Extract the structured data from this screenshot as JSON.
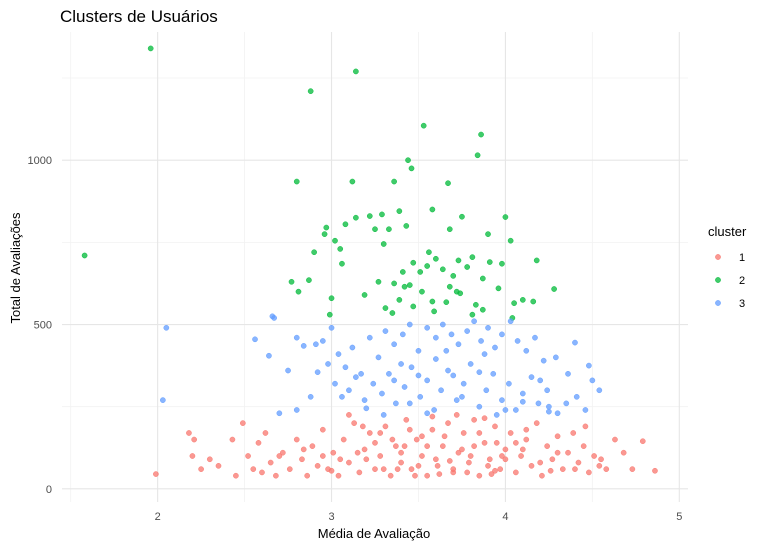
{
  "chart_data": {
    "type": "scatter",
    "title": "Clusters de Usuários",
    "xlabel": "Média de Avaliação",
    "ylabel": "Total de Avaliações",
    "xlim": [
      1.45,
      5.05
    ],
    "ylim": [
      -40,
      1390
    ],
    "x_ticks": [
      2,
      3,
      4,
      5
    ],
    "y_ticks": [
      0,
      500,
      1000
    ],
    "grid": true,
    "legend": {
      "title": "cluster",
      "placement": "right",
      "entries": [
        {
          "label": "1",
          "color": "#F8766D"
        },
        {
          "label": "2",
          "color": "#00BA38"
        },
        {
          "label": "3",
          "color": "#619CFF"
        }
      ]
    },
    "series": [
      {
        "name": "2",
        "color": "#00BA38",
        "points": [
          [
            1.96,
            1340
          ],
          [
            3.14,
            1270
          ],
          [
            2.88,
            1210
          ],
          [
            3.53,
            1105
          ],
          [
            3.86,
            1078
          ],
          [
            3.84,
            1015
          ],
          [
            3.44,
            1000
          ],
          [
            2.8,
            935
          ],
          [
            3.12,
            935
          ],
          [
            3.36,
            935
          ],
          [
            3.67,
            930
          ],
          [
            3.46,
            975
          ],
          [
            3.58,
            850
          ],
          [
            3.39,
            845
          ],
          [
            3.22,
            830
          ],
          [
            3.29,
            835
          ],
          [
            3.14,
            825
          ],
          [
            3.08,
            805
          ],
          [
            2.97,
            795
          ],
          [
            3.75,
            828
          ],
          [
            4.0,
            827
          ],
          [
            3.43,
            800
          ],
          [
            3.25,
            790
          ],
          [
            2.96,
            775
          ],
          [
            3.33,
            790
          ],
          [
            3.68,
            790
          ],
          [
            3.9,
            775
          ],
          [
            4.03,
            755
          ],
          [
            3.02,
            755
          ],
          [
            3.05,
            730
          ],
          [
            3.3,
            745
          ],
          [
            2.9,
            720
          ],
          [
            3.81,
            705
          ],
          [
            3.56,
            720
          ],
          [
            3.6,
            700
          ],
          [
            3.73,
            695
          ],
          [
            3.91,
            690
          ],
          [
            3.06,
            685
          ],
          [
            3.47,
            688
          ],
          [
            3.55,
            678
          ],
          [
            3.64,
            668
          ],
          [
            3.78,
            675
          ],
          [
            3.98,
            685
          ],
          [
            4.18,
            695
          ],
          [
            3.51,
            660
          ],
          [
            3.41,
            660
          ],
          [
            3.7,
            648
          ],
          [
            3.87,
            640
          ],
          [
            2.87,
            635
          ],
          [
            2.77,
            630
          ],
          [
            3.36,
            625
          ],
          [
            3.27,
            630
          ],
          [
            3.42,
            615
          ],
          [
            3.68,
            615
          ],
          [
            3.52,
            600
          ],
          [
            3.74,
            595
          ],
          [
            3.96,
            610
          ],
          [
            4.28,
            608
          ],
          [
            3.19,
            590
          ],
          [
            3.0,
            580
          ],
          [
            3.39,
            575
          ],
          [
            3.58,
            570
          ],
          [
            3.66,
            568
          ],
          [
            3.83,
            560
          ],
          [
            4.1,
            575
          ],
          [
            4.16,
            570
          ],
          [
            4.05,
            565
          ],
          [
            3.47,
            555
          ],
          [
            3.87,
            545
          ],
          [
            3.59,
            540
          ],
          [
            3.35,
            535
          ],
          [
            2.99,
            530
          ],
          [
            3.81,
            530
          ],
          [
            4.04,
            520
          ],
          [
            2.81,
            600
          ],
          [
            1.58,
            710
          ],
          [
            3.72,
            600
          ],
          [
            3.45,
            620
          ],
          [
            3.31,
            550
          ]
        ]
      },
      {
        "name": "3",
        "color": "#619CFF",
        "points": [
          [
            2.05,
            490
          ],
          [
            2.66,
            525
          ],
          [
            2.67,
            520
          ],
          [
            2.56,
            455
          ],
          [
            2.64,
            405
          ],
          [
            2.75,
            360
          ],
          [
            2.8,
            460
          ],
          [
            2.84,
            435
          ],
          [
            2.91,
            440
          ],
          [
            2.92,
            355
          ],
          [
            2.95,
            450
          ],
          [
            2.98,
            380
          ],
          [
            3.0,
            490
          ],
          [
            3.04,
            410
          ],
          [
            3.08,
            370
          ],
          [
            3.12,
            430
          ],
          [
            3.17,
            350
          ],
          [
            3.22,
            460
          ],
          [
            3.27,
            400
          ],
          [
            3.31,
            480
          ],
          [
            3.36,
            440
          ],
          [
            3.41,
            470
          ],
          [
            3.45,
            500
          ],
          [
            3.5,
            420
          ],
          [
            3.55,
            490
          ],
          [
            3.6,
            460
          ],
          [
            3.64,
            500
          ],
          [
            3.69,
            470
          ],
          [
            3.73,
            440
          ],
          [
            3.78,
            480
          ],
          [
            3.82,
            510
          ],
          [
            3.86,
            450
          ],
          [
            3.9,
            490
          ],
          [
            3.94,
            430
          ],
          [
            3.98,
            470
          ],
          [
            4.03,
            510
          ],
          [
            4.07,
            450
          ],
          [
            4.12,
            420
          ],
          [
            4.17,
            460
          ],
          [
            4.22,
            390
          ],
          [
            4.29,
            400
          ],
          [
            4.36,
            350
          ],
          [
            4.4,
            445
          ],
          [
            4.5,
            330
          ],
          [
            3.02,
            320
          ],
          [
            3.06,
            280
          ],
          [
            3.1,
            300
          ],
          [
            3.14,
            340
          ],
          [
            3.19,
            270
          ],
          [
            3.24,
            320
          ],
          [
            3.29,
            290
          ],
          [
            3.33,
            350
          ],
          [
            3.37,
            260
          ],
          [
            3.42,
            310
          ],
          [
            3.46,
            370
          ],
          [
            3.51,
            280
          ],
          [
            3.55,
            330
          ],
          [
            3.59,
            240
          ],
          [
            3.63,
            300
          ],
          [
            3.67,
            360
          ],
          [
            3.72,
            270
          ],
          [
            3.76,
            320
          ],
          [
            3.8,
            380
          ],
          [
            3.85,
            250
          ],
          [
            3.89,
            300
          ],
          [
            3.93,
            350
          ],
          [
            3.98,
            270
          ],
          [
            4.02,
            320
          ],
          [
            4.06,
            240
          ],
          [
            4.1,
            290
          ],
          [
            4.15,
            340
          ],
          [
            4.19,
            260
          ],
          [
            4.24,
            300
          ],
          [
            4.3,
            230
          ],
          [
            4.35,
            260
          ],
          [
            4.41,
            280
          ],
          [
            4.46,
            240
          ],
          [
            4.54,
            300
          ],
          [
            2.03,
            270
          ],
          [
            2.7,
            230
          ],
          [
            2.8,
            240
          ],
          [
            2.88,
            280
          ],
          [
            3.4,
            380
          ],
          [
            3.5,
            345
          ],
          [
            3.7,
            345
          ],
          [
            3.85,
            355
          ],
          [
            3.6,
            395
          ],
          [
            3.45,
            260
          ],
          [
            3.75,
            280
          ],
          [
            4.0,
            240
          ],
          [
            3.3,
            225
          ],
          [
            3.2,
            245
          ],
          [
            3.55,
            230
          ],
          [
            3.95,
            225
          ],
          [
            4.25,
            235
          ],
          [
            4.1,
            265
          ],
          [
            3.88,
            410
          ],
          [
            4.2,
            330
          ],
          [
            3.66,
            420
          ],
          [
            3.36,
            330
          ],
          [
            4.48,
            375
          ],
          [
            4.25,
            250
          ]
        ]
      },
      {
        "name": "1",
        "color": "#F8766D",
        "points": [
          [
            1.99,
            45
          ],
          [
            2.18,
            170
          ],
          [
            2.21,
            150
          ],
          [
            2.25,
            60
          ],
          [
            2.3,
            90
          ],
          [
            2.35,
            70
          ],
          [
            2.43,
            150
          ],
          [
            2.49,
            200
          ],
          [
            2.52,
            100
          ],
          [
            2.55,
            60
          ],
          [
            2.58,
            140
          ],
          [
            2.62,
            170
          ],
          [
            2.65,
            80
          ],
          [
            2.68,
            40
          ],
          [
            2.72,
            110
          ],
          [
            2.76,
            60
          ],
          [
            2.8,
            150
          ],
          [
            2.83,
            90
          ],
          [
            2.86,
            40
          ],
          [
            2.89,
            130
          ],
          [
            2.92,
            70
          ],
          [
            2.95,
            180
          ],
          [
            2.98,
            60
          ],
          [
            3.01,
            110
          ],
          [
            3.04,
            40
          ],
          [
            3.07,
            150
          ],
          [
            3.1,
            80
          ],
          [
            3.13,
            200
          ],
          [
            3.16,
            50
          ],
          [
            3.19,
            120
          ],
          [
            3.22,
            170
          ],
          [
            3.25,
            60
          ],
          [
            3.28,
            100
          ],
          [
            3.31,
            190
          ],
          [
            3.34,
            40
          ],
          [
            3.37,
            130
          ],
          [
            3.4,
            80
          ],
          [
            3.43,
            210
          ],
          [
            3.46,
            60
          ],
          [
            3.49,
            150
          ],
          [
            3.52,
            100
          ],
          [
            3.55,
            40
          ],
          [
            3.58,
            180
          ],
          [
            3.61,
            70
          ],
          [
            3.64,
            130
          ],
          [
            3.67,
            200
          ],
          [
            3.7,
            50
          ],
          [
            3.73,
            110
          ],
          [
            3.76,
            170
          ],
          [
            3.79,
            80
          ],
          [
            3.82,
            210
          ],
          [
            3.85,
            40
          ],
          [
            3.88,
            140
          ],
          [
            3.91,
            90
          ],
          [
            3.94,
            190
          ],
          [
            3.97,
            60
          ],
          [
            4.0,
            120
          ],
          [
            4.03,
            170
          ],
          [
            4.06,
            50
          ],
          [
            4.09,
            100
          ],
          [
            4.12,
            150
          ],
          [
            4.15,
            70
          ],
          [
            4.18,
            200
          ],
          [
            4.21,
            40
          ],
          [
            4.24,
            130
          ],
          [
            4.27,
            90
          ],
          [
            4.3,
            160
          ],
          [
            4.33,
            60
          ],
          [
            4.36,
            110
          ],
          [
            4.39,
            170
          ],
          [
            4.42,
            80
          ],
          [
            4.45,
            130
          ],
          [
            4.48,
            50
          ],
          [
            4.51,
            100
          ],
          [
            4.54,
            70
          ],
          [
            4.58,
            60
          ],
          [
            4.63,
            150
          ],
          [
            4.68,
            110
          ],
          [
            4.73,
            60
          ],
          [
            4.79,
            145
          ],
          [
            4.86,
            55
          ],
          [
            3.2,
            90
          ],
          [
            3.3,
            60
          ],
          [
            3.4,
            110
          ],
          [
            3.5,
            70
          ],
          [
            3.6,
            90
          ],
          [
            3.7,
            60
          ],
          [
            3.8,
            100
          ],
          [
            3.9,
            70
          ],
          [
            4.0,
            90
          ],
          [
            3.35,
            150
          ],
          [
            3.45,
            180
          ],
          [
            3.55,
            130
          ],
          [
            3.65,
            160
          ],
          [
            3.75,
            120
          ],
          [
            3.85,
            170
          ],
          [
            3.95,
            140
          ],
          [
            3.25,
            140
          ],
          [
            3.15,
            110
          ],
          [
            3.05,
            90
          ],
          [
            2.95,
            100
          ],
          [
            4.1,
            120
          ],
          [
            4.2,
            80
          ],
          [
            4.3,
            110
          ],
          [
            3.48,
            40
          ],
          [
            3.62,
            45
          ],
          [
            3.78,
            50
          ],
          [
            3.92,
            45
          ],
          [
            3.58,
            220
          ],
          [
            3.72,
            225
          ],
          [
            3.88,
            215
          ],
          [
            3.1,
            225
          ],
          [
            2.45,
            40
          ],
          [
            2.6,
            50
          ],
          [
            4.4,
            60
          ],
          [
            4.55,
            90
          ],
          [
            2.2,
            100
          ],
          [
            3.42,
            130
          ],
          [
            3.68,
            85
          ],
          [
            3.82,
            130
          ],
          [
            3.52,
            160
          ],
          [
            3.98,
            100
          ],
          [
            4.12,
            180
          ],
          [
            3.38,
            60
          ],
          [
            3.28,
            170
          ],
          [
            3.18,
            190
          ],
          [
            2.7,
            100
          ],
          [
            2.84,
            120
          ],
          [
            3.94,
            55
          ],
          [
            4.06,
            140
          ],
          [
            4.26,
            55
          ],
          [
            4.46,
            190
          ],
          [
            3.0,
            55
          ]
        ]
      }
    ]
  }
}
